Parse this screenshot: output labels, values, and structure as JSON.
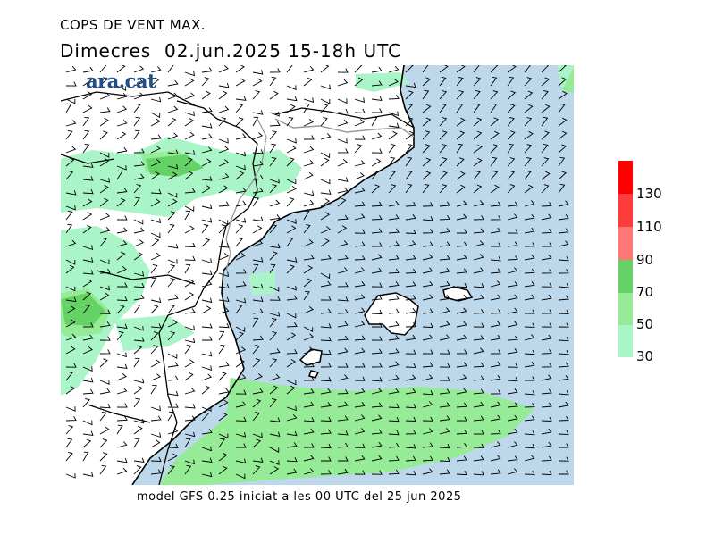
{
  "header": {
    "title": "COPS DE VENT MAX.",
    "subtitle": "Dimecres  02.jun.2025 15-18h UTC"
  },
  "footer": {
    "model_info": "model GFS 0.25 iniciat a les 00 UTC del 25 jun 2025"
  },
  "logo": {
    "text": "ara.cat"
  },
  "legend": {
    "labels": [
      "130",
      "110",
      "90",
      "70",
      "50",
      "30"
    ],
    "colors": [
      "#ff0000",
      "#ff3c3c",
      "#ff7878",
      "#64d264",
      "#96eb96",
      "#aaf5c8"
    ]
  },
  "map_colors": {
    "sea": "#bcd8ea",
    "land": "#ffffff",
    "wind_30_50": "#aaf5c8",
    "wind_50_70": "#96eb96",
    "wind_70_90": "#64d264",
    "coast": "#000000",
    "border": "#999999"
  }
}
